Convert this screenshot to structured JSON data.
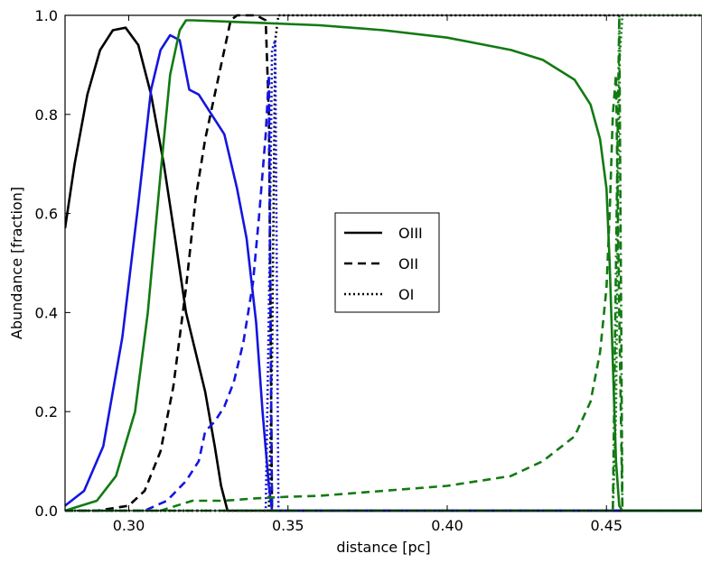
{
  "chart_data": {
    "type": "line",
    "title": "",
    "xlabel": "distance [pc]",
    "ylabel": "Abundance [fraction]",
    "xlim": [
      0.28,
      0.48
    ],
    "ylim": [
      0.0,
      1.0
    ],
    "xticks": [
      0.3,
      0.35,
      0.4,
      0.45
    ],
    "xtick_labels": [
      "0.30",
      "0.35",
      "0.40",
      "0.45"
    ],
    "yticks": [
      0.0,
      0.2,
      0.4,
      0.6,
      0.8,
      1.0
    ],
    "ytick_labels": [
      "0.0",
      "0.2",
      "0.4",
      "0.6",
      "0.8",
      "1.0"
    ],
    "grid": false,
    "legend": {
      "position": "center",
      "entries": [
        {
          "label": "OIII",
          "linestyle": "solid"
        },
        {
          "label": "OII",
          "linestyle": "dashed"
        },
        {
          "label": "OI",
          "linestyle": "dotted"
        }
      ]
    },
    "colors": {
      "black": "#000000",
      "blue": "#1515e0",
      "green": "#127a12"
    },
    "series": [
      {
        "color": "black",
        "linestyle": "solid",
        "x": [
          0.28,
          0.283,
          0.287,
          0.291,
          0.295,
          0.299,
          0.303,
          0.307,
          0.311,
          0.315,
          0.318,
          0.321,
          0.324,
          0.327,
          0.329,
          0.331,
          0.345,
          0.48
        ],
        "y": [
          0.57,
          0.7,
          0.84,
          0.93,
          0.97,
          0.975,
          0.94,
          0.84,
          0.7,
          0.53,
          0.4,
          0.32,
          0.24,
          0.13,
          0.05,
          0.0,
          0.0,
          0.0
        ]
      },
      {
        "color": "black",
        "linestyle": "dashed",
        "x": [
          0.28,
          0.29,
          0.3,
          0.305,
          0.31,
          0.314,
          0.318,
          0.321,
          0.324,
          0.327,
          0.33,
          0.332,
          0.334,
          0.34,
          0.343,
          0.344,
          0.345,
          0.48
        ],
        "y": [
          0.0,
          0.0,
          0.01,
          0.04,
          0.12,
          0.25,
          0.45,
          0.63,
          0.75,
          0.84,
          0.93,
          0.99,
          1.0,
          1.0,
          0.99,
          0.8,
          0.0,
          0.0
        ]
      },
      {
        "color": "black",
        "linestyle": "dotted",
        "x": [
          0.28,
          0.344,
          0.345,
          0.346,
          0.347,
          0.48
        ],
        "y": [
          0.0,
          0.0,
          0.3,
          0.95,
          1.0,
          1.0
        ]
      },
      {
        "color": "blue",
        "linestyle": "solid",
        "x": [
          0.28,
          0.286,
          0.292,
          0.298,
          0.303,
          0.307,
          0.31,
          0.313,
          0.316,
          0.319,
          0.322,
          0.326,
          0.33,
          0.334,
          0.337,
          0.34,
          0.342,
          0.344,
          0.345,
          0.48
        ],
        "y": [
          0.01,
          0.04,
          0.13,
          0.35,
          0.62,
          0.85,
          0.93,
          0.96,
          0.95,
          0.85,
          0.84,
          0.8,
          0.76,
          0.65,
          0.55,
          0.38,
          0.2,
          0.05,
          0.0,
          0.0
        ]
      },
      {
        "color": "blue",
        "linestyle": "dashed",
        "x": [
          0.28,
          0.305,
          0.312,
          0.318,
          0.322,
          0.324,
          0.327,
          0.33,
          0.333,
          0.336,
          0.339,
          0.341,
          0.343,
          0.344,
          0.345,
          0.48
        ],
        "y": [
          0.0,
          0.0,
          0.02,
          0.06,
          0.1,
          0.16,
          0.18,
          0.21,
          0.26,
          0.34,
          0.46,
          0.6,
          0.76,
          0.88,
          0.0,
          0.0
        ]
      },
      {
        "color": "blue",
        "linestyle": "dotted",
        "x": [
          0.28,
          0.343,
          0.344,
          0.345,
          0.346,
          0.347,
          0.48
        ],
        "y": [
          0.0,
          0.0,
          0.4,
          0.93,
          0.95,
          0.0,
          0.0
        ]
      },
      {
        "color": "green",
        "linestyle": "solid",
        "x": [
          0.28,
          0.29,
          0.296,
          0.302,
          0.306,
          0.31,
          0.313,
          0.316,
          0.318,
          0.32,
          0.34,
          0.36,
          0.38,
          0.4,
          0.42,
          0.43,
          0.44,
          0.445,
          0.448,
          0.45,
          0.451,
          0.452,
          0.453,
          0.454,
          0.455,
          0.48
        ],
        "y": [
          0.0,
          0.02,
          0.07,
          0.2,
          0.4,
          0.68,
          0.88,
          0.97,
          0.99,
          0.99,
          0.985,
          0.98,
          0.97,
          0.955,
          0.93,
          0.91,
          0.87,
          0.82,
          0.75,
          0.65,
          0.5,
          0.3,
          0.1,
          0.01,
          0.0,
          0.0
        ]
      },
      {
        "color": "green",
        "linestyle": "dashed",
        "x": [
          0.28,
          0.31,
          0.32,
          0.33,
          0.34,
          0.35,
          0.36,
          0.38,
          0.4,
          0.42,
          0.43,
          0.44,
          0.445,
          0.448,
          0.45,
          0.451,
          0.452,
          0.453,
          0.454,
          0.455,
          0.48
        ],
        "y": [
          0.0,
          0.0,
          0.02,
          0.02,
          0.025,
          0.028,
          0.03,
          0.04,
          0.05,
          0.07,
          0.1,
          0.15,
          0.22,
          0.32,
          0.45,
          0.6,
          0.8,
          0.88,
          0.4,
          0.0,
          0.0
        ]
      },
      {
        "color": "green",
        "linestyle": "dotted",
        "x": [
          0.28,
          0.452,
          0.453,
          0.454,
          0.455,
          0.48
        ],
        "y": [
          0.0,
          0.0,
          0.2,
          0.9,
          1.0,
          1.0
        ]
      },
      {
        "color": "green",
        "linestyle": "dashdot",
        "x": [
          0.28,
          0.452,
          0.453,
          0.454,
          0.455,
          0.48
        ],
        "y": [
          0.0,
          0.0,
          0.5,
          1.0,
          0.0,
          0.0
        ]
      }
    ]
  }
}
